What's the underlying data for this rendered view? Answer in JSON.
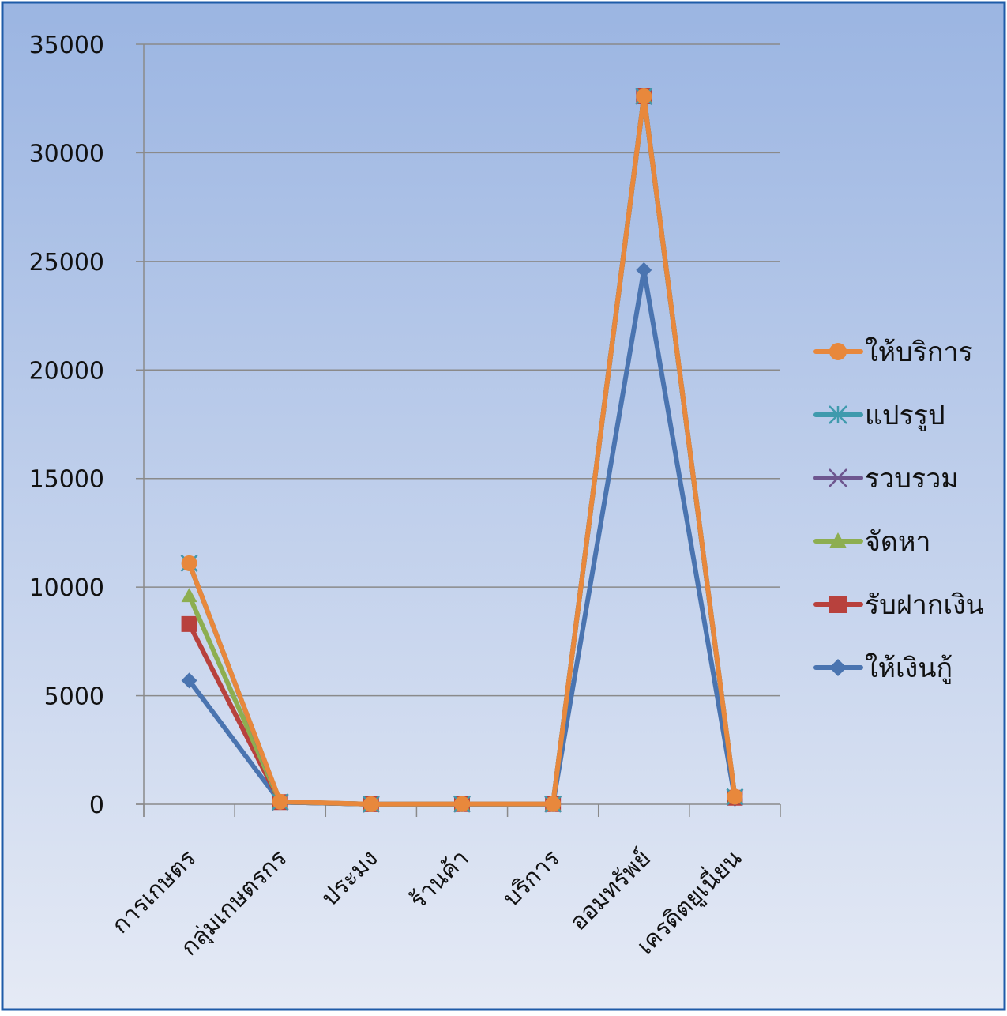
{
  "chart_data": {
    "type": "line",
    "categories": [
      "การเกษตร",
      "กลุ่มเกษตรกร",
      "ประมง",
      "ร้านค้า",
      "บริการ",
      "ออมทรัพย์",
      "เครดิตยูเนี่ยน"
    ],
    "ylim": [
      0,
      35000
    ],
    "yticks": [
      "0",
      "5000",
      "10000",
      "15000",
      "20000",
      "25000",
      "30000",
      "35000"
    ],
    "grid": true,
    "legend_position": "right",
    "title": "",
    "xlabel": "",
    "ylabel": "",
    "series": [
      {
        "name": "ให้เงินกู้",
        "color": "#4A74B0",
        "marker": "diamond",
        "values": [
          5700,
          100,
          5,
          10,
          10,
          24600,
          250
        ]
      },
      {
        "name": "รับฝากเงิน",
        "color": "#B8413D",
        "marker": "square",
        "values": [
          8300,
          100,
          5,
          10,
          10,
          32600,
          300
        ]
      },
      {
        "name": "จัดหา",
        "color": "#8DAE50",
        "marker": "triangle",
        "values": [
          9600,
          100,
          5,
          10,
          10,
          32600,
          320
        ]
      },
      {
        "name": "รวบรวม",
        "color": "#6E568F",
        "marker": "x",
        "values": [
          11100,
          100,
          5,
          10,
          10,
          32600,
          330
        ]
      },
      {
        "name": "แปรรูป",
        "color": "#3F9AAD",
        "marker": "star",
        "values": [
          11100,
          110,
          5,
          10,
          10,
          32600,
          340
        ]
      },
      {
        "name": "ให้บริการ",
        "color": "#E8883C",
        "marker": "circle",
        "values": [
          11100,
          120,
          5,
          15,
          15,
          32600,
          350
        ]
      }
    ]
  }
}
